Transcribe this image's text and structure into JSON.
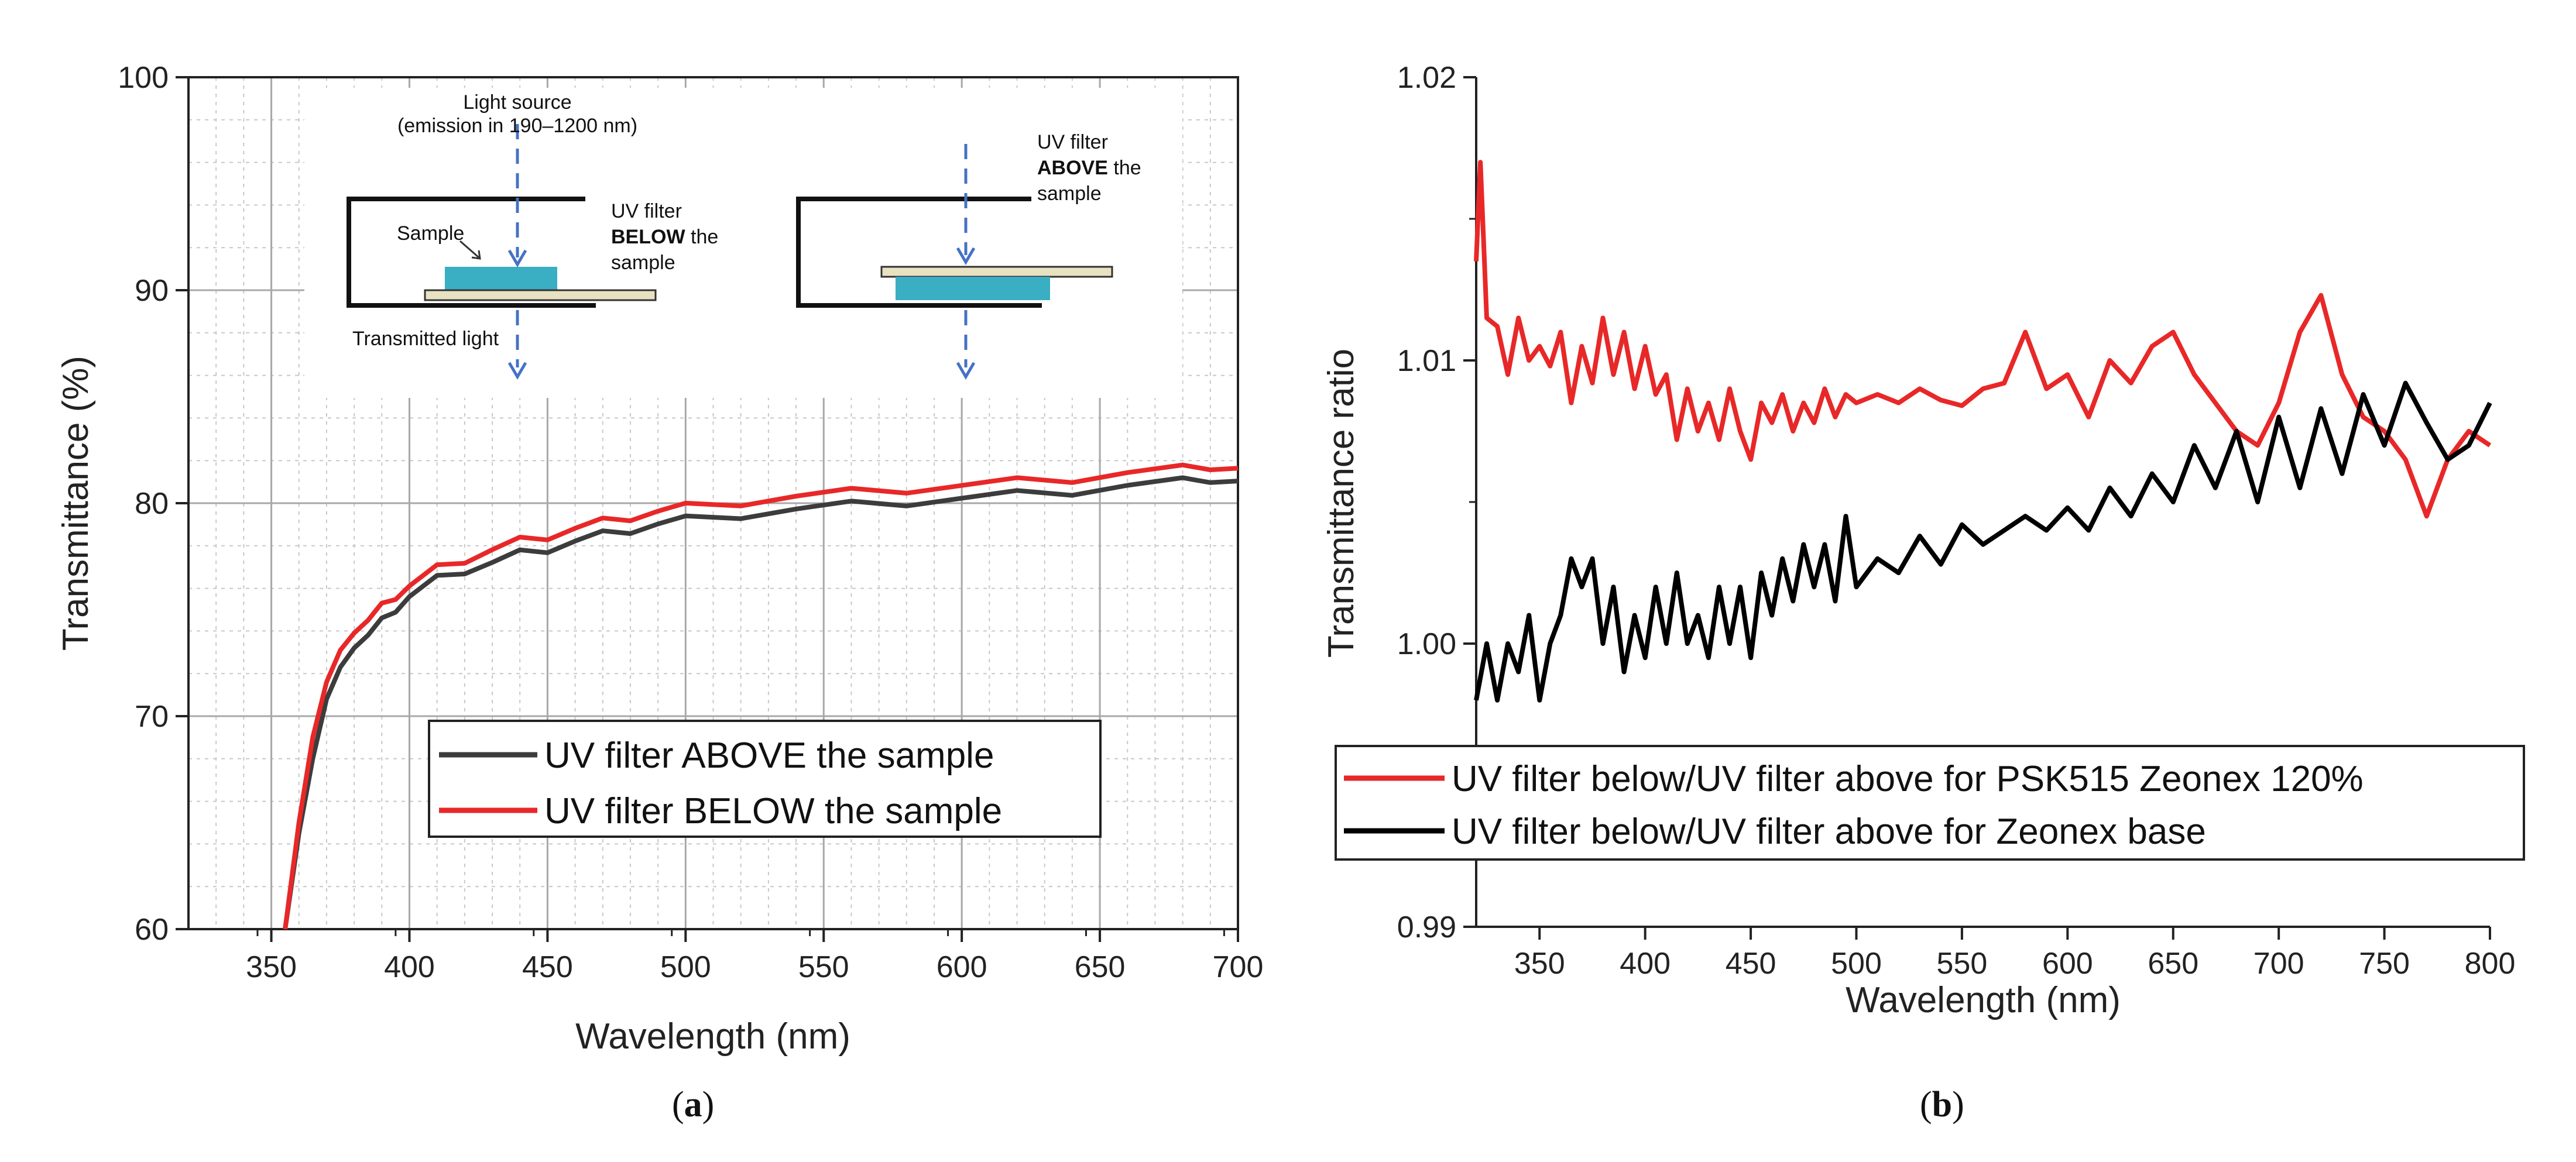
{
  "colors": {
    "red": "#e82828",
    "dark": "#3c3c3c",
    "black": "#000000",
    "arrow": "#4472c4",
    "sample": "#3aaec3",
    "filter": "#e8e2c2"
  },
  "chart_data": [
    {
      "panel": "(a)",
      "panel_label_pre": "(",
      "panel_label_letter": "a",
      "panel_label_post": ")",
      "type": "line",
      "xlabel": "Wavelength (nm)",
      "ylabel": "Transmittance (%)",
      "xlim": [
        320,
        700
      ],
      "ylim": [
        60,
        100
      ],
      "xticks": [
        350,
        400,
        450,
        500,
        550,
        600,
        650,
        700
      ],
      "yticks": [
        60,
        70,
        80,
        90,
        100
      ],
      "grid": true,
      "legend": "bottom-right",
      "series": [
        {
          "name": "UV filter ABOVE the sample",
          "color": "#3c3c3c",
          "x": [
            355,
            360,
            365,
            370,
            375,
            380,
            385,
            390,
            395,
            400,
            410,
            420,
            430,
            440,
            450,
            460,
            470,
            480,
            490,
            500,
            520,
            540,
            560,
            580,
            600,
            620,
            640,
            660,
            680,
            690,
            700
          ],
          "y": [
            60,
            64.5,
            68,
            70.8,
            72.3,
            73.2,
            73.8,
            74.4,
            75.1,
            75.6,
            76.4,
            76.9,
            77.2,
            77.6,
            77.9,
            78.2,
            78.5,
            78.8,
            79.0,
            79.2,
            79.5,
            79.7,
            79.9,
            80.1,
            80.2,
            80.4,
            80.6,
            80.8,
            81.0,
            81.2,
            81.0
          ]
        },
        {
          "name": "UV filter BELOW the sample",
          "color": "#e82828",
          "x": [
            355,
            360,
            365,
            370,
            375,
            380,
            385,
            390,
            395,
            400,
            410,
            420,
            430,
            440,
            450,
            460,
            470,
            480,
            490,
            500,
            520,
            540,
            560,
            580,
            600,
            620,
            640,
            660,
            680,
            690,
            700
          ],
          "y": [
            60,
            65,
            69,
            71.6,
            73.1,
            73.9,
            74.5,
            75.1,
            75.7,
            76.1,
            76.9,
            77.4,
            77.8,
            78.2,
            78.5,
            78.8,
            79.1,
            79.4,
            79.6,
            79.8,
            80.1,
            80.3,
            80.5,
            80.7,
            80.8,
            81.0,
            81.2,
            81.4,
            81.6,
            81.8,
            81.6
          ]
        }
      ],
      "inset": {
        "light_source_line1": "Light source",
        "light_source_line2": "(emission in 190–1200 nm)",
        "sample": "Sample",
        "transmitted": "Transmitted light",
        "below_line1": "UV filter",
        "below_bold": "BELOW",
        "below_the": " the",
        "below_line3": "sample",
        "above_line1": "UV filter",
        "above_bold": "ABOVE",
        "above_the": " the",
        "above_line3": "sample"
      }
    },
    {
      "panel": "(b)",
      "panel_label_pre": "(",
      "panel_label_letter": "b",
      "panel_label_post": ")",
      "type": "line",
      "xlabel": "Wavelength (nm)",
      "ylabel": "Transmittance ratio",
      "xlim": [
        320,
        800
      ],
      "ylim": [
        0.99,
        1.02
      ],
      "xticks": [
        350,
        400,
        450,
        500,
        550,
        600,
        650,
        700,
        750,
        800
      ],
      "ytick_labels": [
        "0.99",
        "1.00",
        "1.01",
        "1.02"
      ],
      "grid": false,
      "legend": "bottom",
      "series": [
        {
          "name": "UV filter below/UV filter above for PSK515 Zeonex 120%",
          "color": "#e82828",
          "x": [
            320,
            322,
            325,
            330,
            335,
            340,
            345,
            350,
            355,
            360,
            365,
            370,
            375,
            380,
            385,
            390,
            395,
            400,
            405,
            410,
            415,
            420,
            425,
            430,
            435,
            440,
            445,
            450,
            455,
            460,
            465,
            470,
            475,
            480,
            485,
            490,
            495,
            500,
            510,
            520,
            530,
            540,
            550,
            560,
            570,
            580,
            590,
            600,
            610,
            620,
            630,
            640,
            650,
            660,
            670,
            680,
            690,
            700,
            710,
            720,
            730,
            740,
            750,
            760,
            770,
            780,
            790,
            800
          ],
          "y": [
            1.0135,
            1.017,
            1.0115,
            1.0112,
            1.0095,
            1.0115,
            1.01,
            1.0105,
            1.0098,
            1.011,
            1.0085,
            1.0105,
            1.0092,
            1.0115,
            1.0095,
            1.011,
            1.009,
            1.0105,
            1.0088,
            1.0095,
            1.0072,
            1.009,
            1.0075,
            1.0085,
            1.0072,
            1.009,
            1.0075,
            1.0065,
            1.0085,
            1.0078,
            1.0088,
            1.0075,
            1.0085,
            1.0078,
            1.009,
            1.008,
            1.0088,
            1.0085,
            1.0088,
            1.0085,
            1.009,
            1.0086,
            1.0084,
            1.009,
            1.0092,
            1.011,
            1.009,
            1.0095,
            1.008,
            1.01,
            1.0092,
            1.0105,
            1.011,
            1.0095,
            1.0085,
            1.0075,
            1.007,
            1.0085,
            1.011,
            1.0123,
            1.0095,
            1.008,
            1.0075,
            1.0065,
            1.0045,
            1.0065,
            1.0075,
            1.007
          ]
        },
        {
          "name": "UV filter below/UV filter above for Zeonex base",
          "color": "#000000",
          "x": [
            320,
            325,
            330,
            335,
            340,
            345,
            350,
            355,
            360,
            365,
            370,
            375,
            380,
            385,
            390,
            395,
            400,
            405,
            410,
            415,
            420,
            425,
            430,
            435,
            440,
            445,
            450,
            455,
            460,
            465,
            470,
            475,
            480,
            485,
            490,
            495,
            500,
            510,
            520,
            530,
            540,
            550,
            560,
            570,
            580,
            590,
            600,
            610,
            620,
            630,
            640,
            650,
            660,
            670,
            680,
            690,
            700,
            710,
            720,
            730,
            740,
            750,
            760,
            770,
            780,
            790,
            800
          ],
          "y": [
            0.998,
            1.0,
            0.998,
            1.0,
            0.999,
            1.001,
            0.998,
            1.0,
            1.001,
            1.003,
            1.002,
            1.003,
            1.0,
            1.002,
            0.999,
            1.001,
            0.9995,
            1.002,
            1.0,
            1.0025,
            1.0,
            1.001,
            0.9995,
            1.002,
            1.0,
            1.002,
            0.9995,
            1.0025,
            1.001,
            1.003,
            1.0015,
            1.0035,
            1.002,
            1.0035,
            1.0015,
            1.0045,
            1.002,
            1.003,
            1.0025,
            1.0038,
            1.0028,
            1.0042,
            1.0035,
            1.004,
            1.0045,
            1.004,
            1.0048,
            1.004,
            1.0055,
            1.0045,
            1.006,
            1.005,
            1.007,
            1.0055,
            1.0075,
            1.005,
            1.008,
            1.0055,
            1.0083,
            1.006,
            1.0088,
            1.007,
            1.0092,
            1.0078,
            1.0065,
            1.007,
            1.0085
          ]
        }
      ]
    }
  ]
}
